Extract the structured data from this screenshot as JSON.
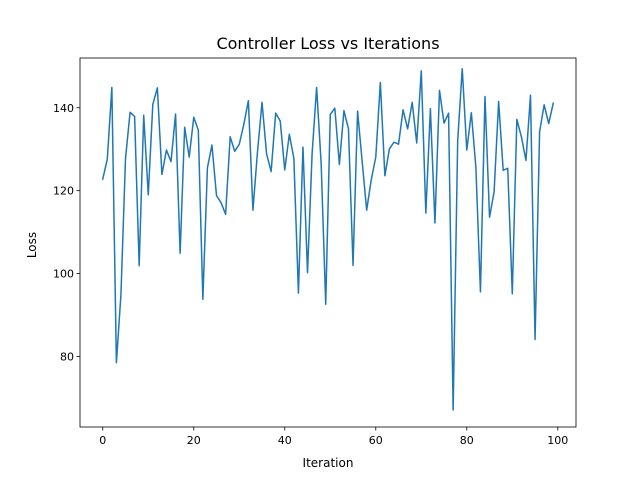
{
  "chart_data": {
    "type": "line",
    "title": "Controller Loss vs Iterations",
    "xlabel": "Iteration",
    "ylabel": "Loss",
    "xlim": [
      -5,
      104
    ],
    "ylim": [
      63,
      152
    ],
    "xticks": [
      0,
      20,
      40,
      60,
      80,
      100
    ],
    "yticks": [
      80,
      100,
      120,
      140
    ],
    "grid": false,
    "line_color": "#1f77b4",
    "series": [
      {
        "x": [
          0,
          1,
          2,
          3,
          4,
          5,
          6,
          7,
          8,
          9,
          10,
          11,
          12,
          13,
          14,
          15,
          16,
          17,
          18,
          19,
          20,
          21,
          22,
          23,
          24,
          25,
          26,
          27,
          28,
          29,
          30,
          31,
          32,
          33,
          34,
          35,
          36,
          37,
          38,
          39,
          40,
          41,
          42,
          43,
          44,
          45,
          46,
          47,
          48,
          49,
          50,
          51,
          52,
          53,
          54,
          55,
          56,
          57,
          58,
          59,
          60,
          61,
          62,
          63,
          64,
          65,
          66,
          67,
          68,
          69,
          70,
          71,
          72,
          73,
          74,
          75,
          76,
          77,
          78,
          79,
          80,
          81,
          82,
          83,
          84,
          85,
          86,
          87,
          88,
          89,
          90,
          91,
          92,
          93,
          94,
          95,
          96,
          97,
          98,
          99
        ],
        "y": [
          122.8,
          127.6,
          144.9,
          78.5,
          95.0,
          127.7,
          138.9,
          137.9,
          101.9,
          138.2,
          119.0,
          140.8,
          144.8,
          123.9,
          129.8,
          127.0,
          138.5,
          104.9,
          135.3,
          128.1,
          137.7,
          134.6,
          93.8,
          125.5,
          131.0,
          118.8,
          117.1,
          114.3,
          133.0,
          129.5,
          131.2,
          136.0,
          141.7,
          115.3,
          129.3,
          141.3,
          128.9,
          124.6,
          138.7,
          136.8,
          125.0,
          133.6,
          127.8,
          95.3,
          130.5,
          100.2,
          128.8,
          144.9,
          126.5,
          92.6,
          138.4,
          139.9,
          126.3,
          139.3,
          134.9,
          102.0,
          139.2,
          127.1,
          115.3,
          122.6,
          128.1,
          146.1,
          123.6,
          130.1,
          131.7,
          131.2,
          139.5,
          134.9,
          141.3,
          131.5,
          148.9,
          114.6,
          139.8,
          112.2,
          144.2,
          136.3,
          138.7,
          67.1,
          132.1,
          149.4,
          129.8,
          138.8,
          125.6,
          95.6,
          142.7,
          113.6,
          119.7,
          141.5,
          124.9,
          125.4,
          95.1,
          137.2,
          133.0,
          127.3,
          143.0,
          84.1,
          134.2,
          140.7,
          136.2,
          141.1
        ]
      }
    ]
  }
}
